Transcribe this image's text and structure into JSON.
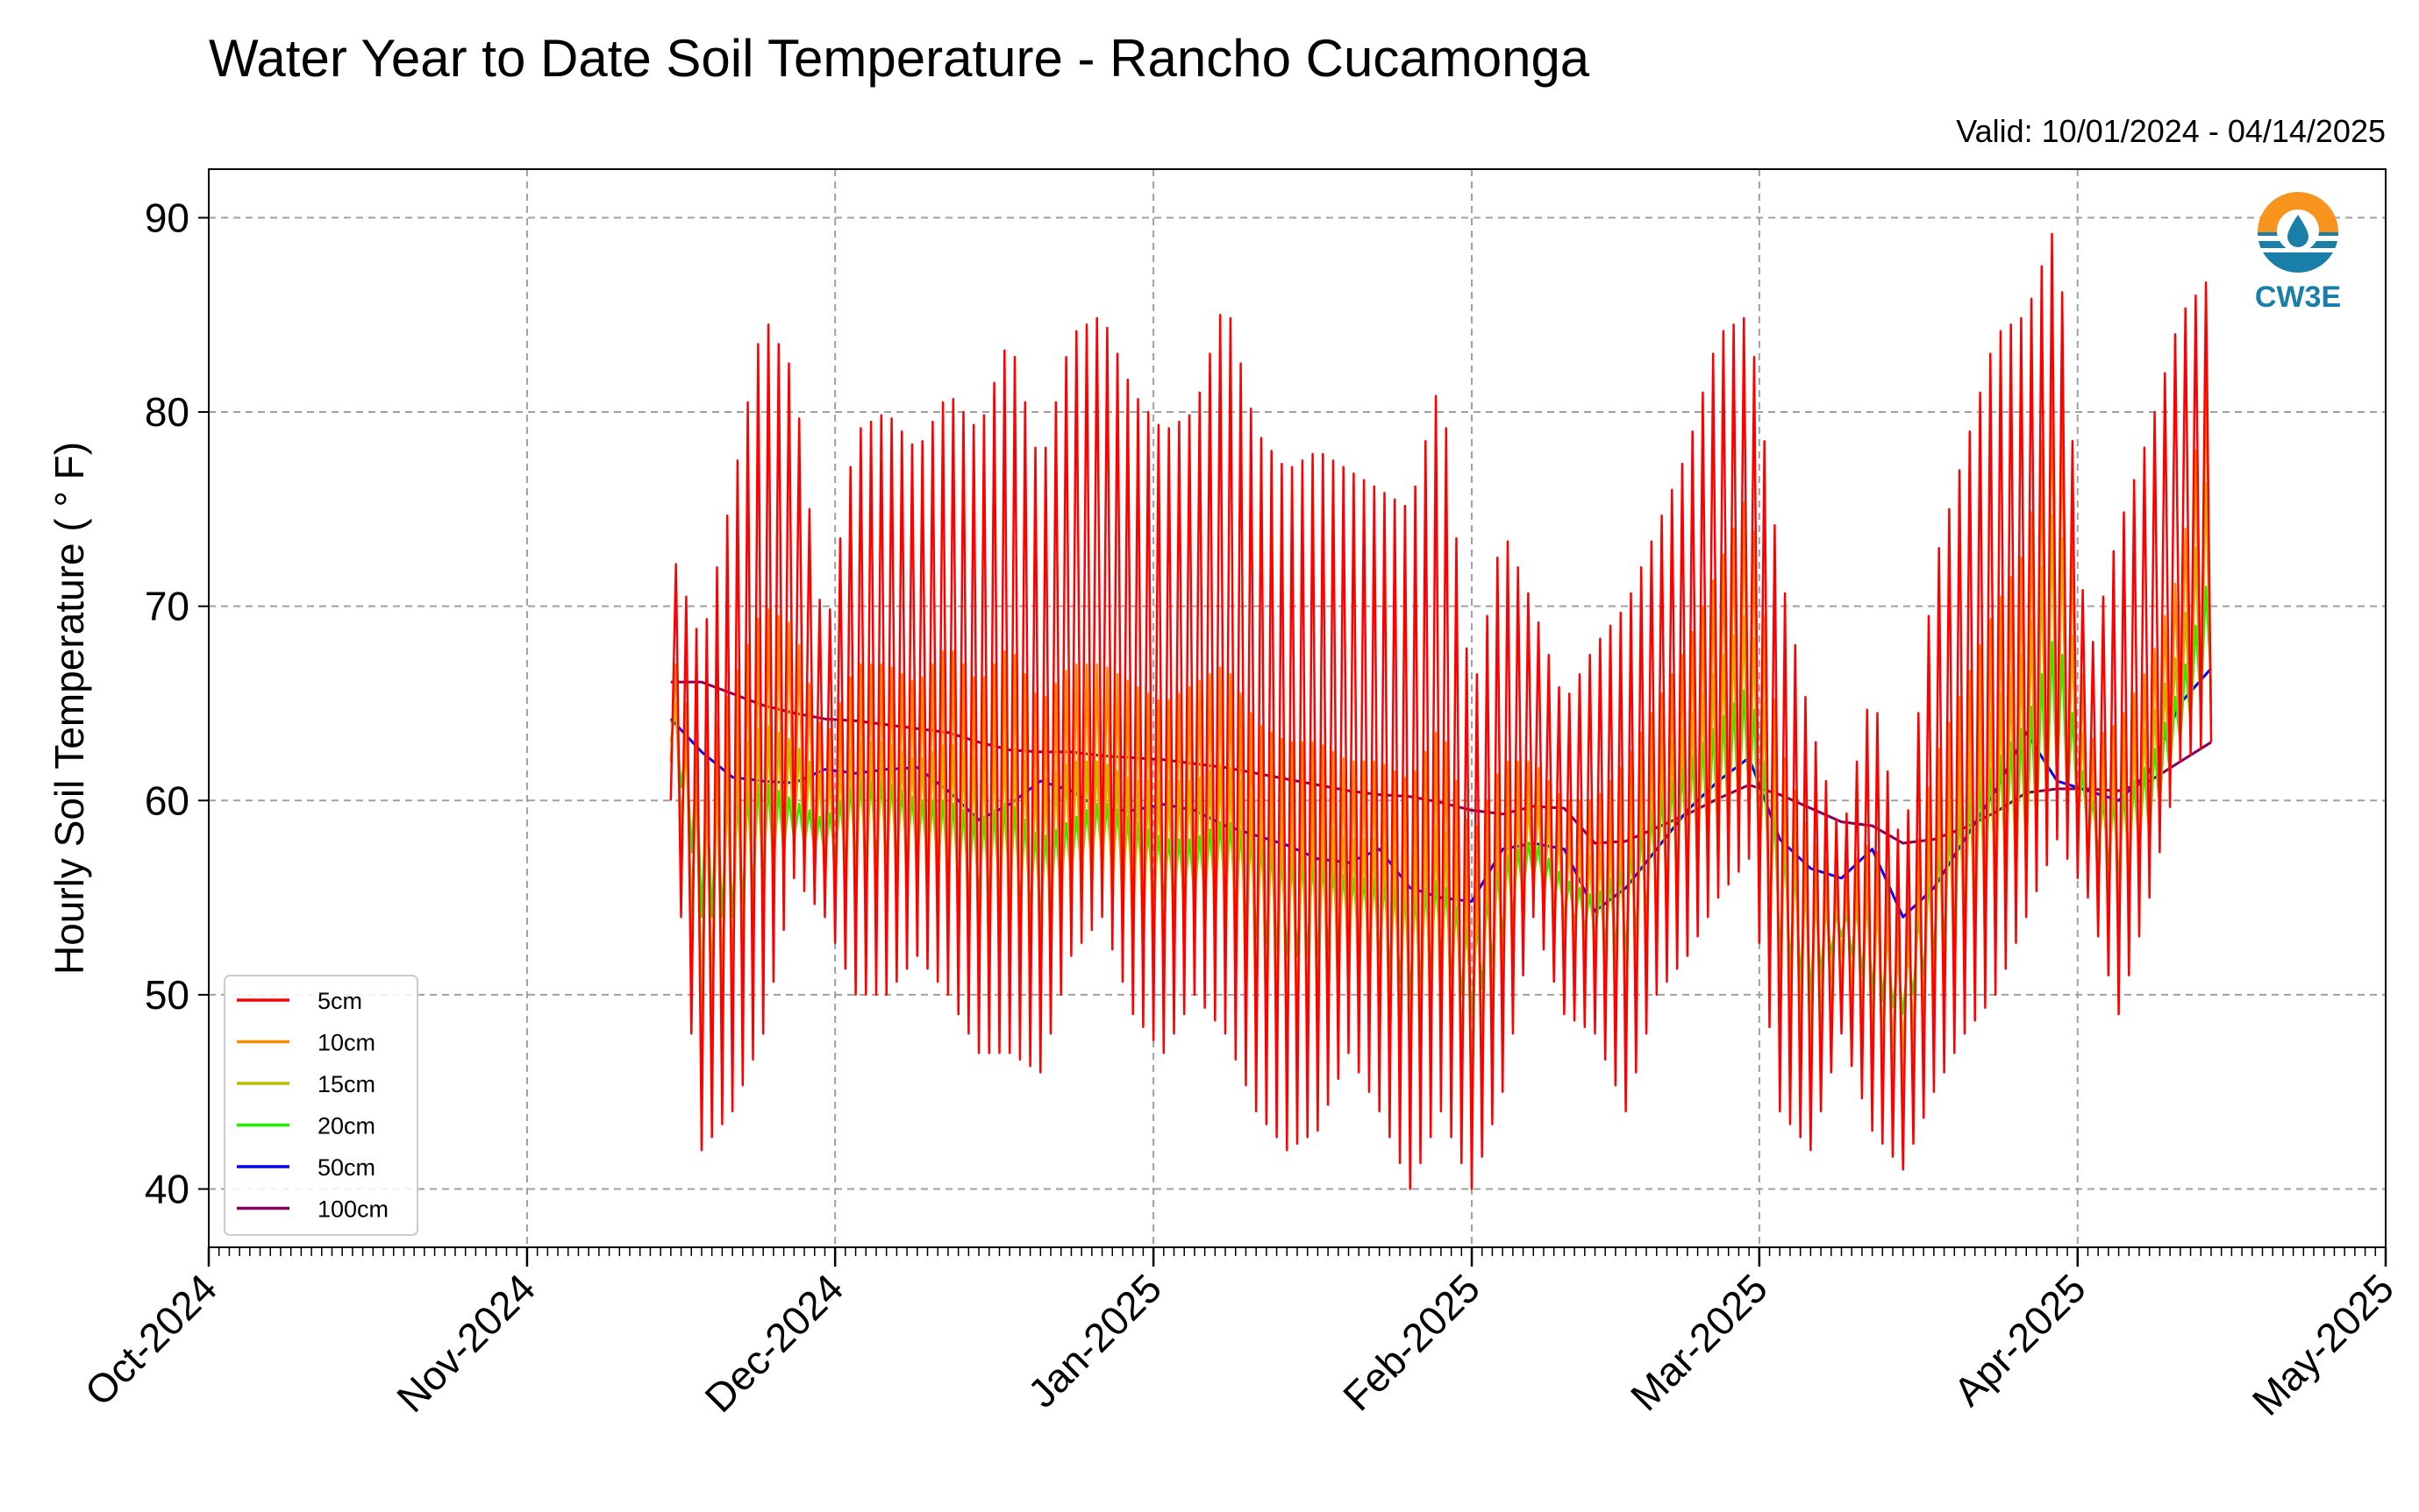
{
  "chart_data": {
    "type": "line",
    "title": "Water Year to Date Soil Temperature - Rancho Cucamonga",
    "valid_text": "Valid: 10/01/2024 - 04/14/2025",
    "ylabel": "Hourly Soil Temperature ( $^\\circ$F)",
    "ylabel_display": "Hourly Soil Temperature ( ° F)",
    "ylim": [
      37,
      92.5
    ],
    "y_ticks": [
      40,
      50,
      60,
      70,
      80,
      90
    ],
    "x_range": [
      "2024-10-01",
      "2025-05-01"
    ],
    "x_ticks": [
      {
        "date": "2024-10-01",
        "label": "Oct-2024"
      },
      {
        "date": "2024-11-01",
        "label": "Nov-2024"
      },
      {
        "date": "2024-12-01",
        "label": "Dec-2024"
      },
      {
        "date": "2025-01-01",
        "label": "Jan-2025"
      },
      {
        "date": "2025-02-01",
        "label": "Feb-2025"
      },
      {
        "date": "2025-03-01",
        "label": "Mar-2025"
      },
      {
        "date": "2025-04-01",
        "label": "Apr-2025"
      },
      {
        "date": "2025-05-01",
        "label": "May-2025"
      }
    ],
    "grid": true,
    "legend_position": "bottom-left",
    "logo_text": "CW3E",
    "series": [
      {
        "name": "5cm",
        "color": "#ff0000",
        "x": [
          "2024-11-15",
          "2024-11-18",
          "2024-11-21",
          "2024-11-24",
          "2024-11-27",
          "2024-11-30",
          "2024-12-03",
          "2024-12-06",
          "2024-12-09",
          "2024-12-12",
          "2024-12-15",
          "2024-12-18",
          "2024-12-21",
          "2024-12-24",
          "2024-12-27",
          "2024-12-30",
          "2025-01-02",
          "2025-01-05",
          "2025-01-08",
          "2025-01-11",
          "2025-01-14",
          "2025-01-17",
          "2025-01-20",
          "2025-01-23",
          "2025-01-26",
          "2025-01-29",
          "2025-02-01",
          "2025-02-04",
          "2025-02-07",
          "2025-02-10",
          "2025-02-13",
          "2025-02-16",
          "2025-02-19",
          "2025-02-22",
          "2025-02-25",
          "2025-02-28",
          "2025-03-03",
          "2025-03-06",
          "2025-03-09",
          "2025-03-12",
          "2025-03-15",
          "2025-03-18",
          "2025-03-21",
          "2025-03-24",
          "2025-03-27",
          "2025-03-30",
          "2025-04-02",
          "2025-04-05",
          "2025-04-08",
          "2025-04-11",
          "2025-04-14"
        ],
        "high": [
          73,
          68,
          76,
          85,
          82,
          68,
          79,
          80,
          78,
          81,
          79,
          84,
          77,
          84,
          85,
          81,
          79,
          80,
          86,
          79,
          77,
          78,
          77,
          76,
          75,
          82,
          65,
          74,
          70,
          65,
          68,
          70,
          74,
          78,
          84,
          85,
          72,
          64,
          58,
          66,
          57,
          72,
          78,
          84,
          85,
          90,
          67,
          74,
          79,
          85,
          87
        ],
        "low": [
          60,
          42,
          44,
          48,
          56,
          54,
          50,
          50,
          52,
          50,
          47,
          47,
          46,
          52,
          54,
          49,
          47,
          50,
          48,
          44,
          42,
          43,
          47,
          44,
          40,
          44,
          40,
          45,
          54,
          49,
          48,
          44,
          50,
          52,
          55,
          57,
          44,
          42,
          48,
          43,
          41,
          45,
          48,
          50,
          54,
          58,
          55,
          49,
          55,
          62,
          63
        ]
      },
      {
        "name": "10cm",
        "color": "#ff8c00",
        "x": [
          "2024-11-15",
          "2024-11-18",
          "2024-11-21",
          "2024-11-24",
          "2024-11-27",
          "2024-11-30",
          "2024-12-03",
          "2024-12-06",
          "2024-12-09",
          "2024-12-12",
          "2024-12-15",
          "2024-12-18",
          "2024-12-21",
          "2024-12-24",
          "2024-12-27",
          "2024-12-30",
          "2025-01-02",
          "2025-01-05",
          "2025-01-08",
          "2025-01-11",
          "2025-01-14",
          "2025-01-17",
          "2025-01-20",
          "2025-01-23",
          "2025-01-26",
          "2025-01-29",
          "2025-02-01",
          "2025-02-04",
          "2025-02-07",
          "2025-02-10",
          "2025-02-13",
          "2025-02-16",
          "2025-02-19",
          "2025-02-22",
          "2025-02-25",
          "2025-02-28",
          "2025-03-03",
          "2025-03-06",
          "2025-03-09",
          "2025-03-12",
          "2025-03-15",
          "2025-03-18",
          "2025-03-21",
          "2025-03-24",
          "2025-03-27",
          "2025-03-30",
          "2025-04-02",
          "2025-04-05",
          "2025-04-08",
          "2025-04-11",
          "2025-04-14"
        ],
        "high": [
          68,
          62,
          66,
          70,
          69,
          63,
          67,
          67,
          66,
          68,
          66,
          68,
          65,
          67,
          67,
          66,
          65,
          66,
          67,
          64,
          63,
          63,
          62,
          62,
          61,
          64,
          58,
          62,
          62,
          60,
          60,
          62,
          65,
          68,
          72,
          76,
          63,
          58,
          56,
          58,
          54,
          62,
          66,
          70,
          73,
          84,
          63,
          64,
          67,
          72,
          84
        ],
        "low": [
          62,
          46,
          48,
          52,
          57,
          55,
          53,
          53,
          54,
          52,
          50,
          50,
          49,
          53,
          55,
          51,
          50,
          52,
          51,
          47,
          46,
          46,
          49,
          47,
          44,
          47,
          43,
          48,
          55,
          51,
          50,
          47,
          52,
          54,
          56,
          58,
          47,
          45,
          50,
          46,
          44,
          47,
          50,
          52,
          55,
          59,
          56,
          52,
          57,
          63,
          64
        ]
      },
      {
        "name": "15cm",
        "color": "#bcbc00",
        "x": [
          "2024-11-15",
          "2024-11-18",
          "2024-11-21",
          "2024-11-24",
          "2024-11-27",
          "2024-11-30",
          "2024-12-03",
          "2024-12-06",
          "2024-12-09",
          "2024-12-12",
          "2024-12-15",
          "2024-12-18",
          "2024-12-21",
          "2024-12-24",
          "2024-12-27",
          "2024-12-30",
          "2025-01-02",
          "2025-01-05",
          "2025-01-08",
          "2025-01-11",
          "2025-01-14",
          "2025-01-17",
          "2025-01-20",
          "2025-01-23",
          "2025-01-26",
          "2025-01-29",
          "2025-02-01",
          "2025-02-04",
          "2025-02-07",
          "2025-02-10",
          "2025-02-13",
          "2025-02-16",
          "2025-02-19",
          "2025-02-22",
          "2025-02-25",
          "2025-02-28",
          "2025-03-03",
          "2025-03-06",
          "2025-03-09",
          "2025-03-12",
          "2025-03-15",
          "2025-03-18",
          "2025-03-21",
          "2025-03-24",
          "2025-03-27",
          "2025-03-30",
          "2025-04-02",
          "2025-04-05",
          "2025-04-08",
          "2025-04-11",
          "2025-04-14"
        ],
        "high": [
          66,
          60,
          62,
          64,
          63,
          61,
          63,
          63,
          62,
          63,
          62,
          63,
          61,
          62,
          62,
          61,
          61,
          61,
          62,
          60,
          59,
          59,
          58,
          58,
          57,
          59,
          55,
          59,
          60,
          58,
          57,
          59,
          62,
          64,
          67,
          70,
          60,
          56,
          55,
          56,
          52,
          59,
          62,
          65,
          68,
          76,
          61,
          62,
          64,
          68,
          78
        ],
        "low": [
          63,
          50,
          51,
          54,
          58,
          56,
          55,
          55,
          56,
          54,
          53,
          53,
          52,
          55,
          56,
          53,
          52,
          54,
          53,
          50,
          49,
          49,
          51,
          50,
          47,
          49,
          46,
          51,
          56,
          53,
          52,
          50,
          54,
          56,
          57,
          59,
          50,
          48,
          52,
          48,
          47,
          50,
          52,
          54,
          56,
          60,
          57,
          54,
          58,
          63,
          65
        ]
      },
      {
        "name": "20cm",
        "color": "#22ee00",
        "x": [
          "2024-11-15",
          "2024-11-18",
          "2024-11-21",
          "2024-11-24",
          "2024-11-27",
          "2024-11-30",
          "2024-12-03",
          "2024-12-06",
          "2024-12-09",
          "2024-12-12",
          "2024-12-15",
          "2024-12-18",
          "2024-12-21",
          "2024-12-24",
          "2024-12-27",
          "2024-12-30",
          "2025-01-02",
          "2025-01-05",
          "2025-01-08",
          "2025-01-11",
          "2025-01-14",
          "2025-01-17",
          "2025-01-20",
          "2025-01-23",
          "2025-01-26",
          "2025-01-29",
          "2025-02-01",
          "2025-02-04",
          "2025-02-07",
          "2025-02-10",
          "2025-02-13",
          "2025-02-16",
          "2025-02-19",
          "2025-02-22",
          "2025-02-25",
          "2025-02-28",
          "2025-03-03",
          "2025-03-06",
          "2025-03-09",
          "2025-03-12",
          "2025-03-15",
          "2025-03-18",
          "2025-03-21",
          "2025-03-24",
          "2025-03-27",
          "2025-03-30",
          "2025-04-02",
          "2025-04-05",
          "2025-04-08",
          "2025-04-11",
          "2025-04-14"
        ],
        "high": [
          65,
          61,
          60,
          61,
          60,
          59,
          61,
          61,
          60,
          60,
          59,
          60,
          58,
          59,
          60,
          59,
          58,
          58,
          59,
          58,
          57,
          57,
          56,
          56,
          55,
          56,
          53,
          57,
          58,
          56,
          55,
          57,
          60,
          62,
          64,
          66,
          58,
          55,
          54,
          55,
          51,
          57,
          60,
          62,
          64,
          69,
          60,
          60,
          62,
          66,
          72
        ],
        "low": [
          64,
          54,
          54,
          56,
          58,
          57,
          57,
          57,
          57,
          56,
          55,
          55,
          54,
          56,
          57,
          55,
          55,
          55,
          55,
          53,
          52,
          52,
          53,
          52,
          50,
          52,
          49,
          53,
          56,
          54,
          53,
          52,
          55,
          57,
          58,
          60,
          52,
          50,
          53,
          50,
          49,
          52,
          54,
          56,
          57,
          61,
          58,
          56,
          58,
          63,
          66
        ]
      },
      {
        "name": "50cm",
        "color": "#0000ff",
        "x": [
          "2024-11-15",
          "2024-11-18",
          "2024-11-21",
          "2024-11-24",
          "2024-11-27",
          "2024-11-30",
          "2024-12-03",
          "2024-12-06",
          "2024-12-09",
          "2024-12-12",
          "2024-12-15",
          "2024-12-18",
          "2024-12-21",
          "2024-12-24",
          "2024-12-27",
          "2024-12-30",
          "2025-01-02",
          "2025-01-05",
          "2025-01-08",
          "2025-01-11",
          "2025-01-14",
          "2025-01-17",
          "2025-01-20",
          "2025-01-23",
          "2025-01-26",
          "2025-01-29",
          "2025-02-01",
          "2025-02-04",
          "2025-02-07",
          "2025-02-10",
          "2025-02-13",
          "2025-02-16",
          "2025-02-19",
          "2025-02-22",
          "2025-02-25",
          "2025-02-28",
          "2025-03-03",
          "2025-03-06",
          "2025-03-09",
          "2025-03-12",
          "2025-03-15",
          "2025-03-18",
          "2025-03-21",
          "2025-03-24",
          "2025-03-27",
          "2025-03-30",
          "2025-04-02",
          "2025-04-05",
          "2025-04-08",
          "2025-04-11",
          "2025-04-14"
        ],
        "values": [
          64.2,
          62.5,
          61.2,
          61.0,
          60.9,
          61.6,
          61.4,
          61.6,
          61.7,
          60.5,
          59.0,
          59.8,
          61.0,
          60.5,
          59.5,
          59.5,
          59.8,
          59.5,
          58.7,
          58.2,
          57.7,
          57.0,
          56.8,
          57.5,
          55.5,
          55.0,
          54.8,
          57.5,
          57.8,
          57.5,
          54.3,
          55.5,
          57.5,
          59.5,
          61.0,
          62.2,
          58.0,
          56.5,
          56.0,
          57.5,
          54.0,
          55.5,
          58.0,
          60.5,
          63.5,
          61.0,
          60.5,
          60.0,
          61.5,
          65.0,
          66.8
        ]
      },
      {
        "name": "100cm",
        "color": "#800060",
        "x": [
          "2024-11-15",
          "2024-11-18",
          "2024-11-21",
          "2024-11-24",
          "2024-11-27",
          "2024-11-30",
          "2024-12-03",
          "2024-12-06",
          "2024-12-09",
          "2024-12-12",
          "2024-12-15",
          "2024-12-18",
          "2024-12-21",
          "2024-12-24",
          "2024-12-27",
          "2024-12-30",
          "2025-01-02",
          "2025-01-05",
          "2025-01-08",
          "2025-01-11",
          "2025-01-14",
          "2025-01-17",
          "2025-01-20",
          "2025-01-23",
          "2025-01-26",
          "2025-01-29",
          "2025-02-01",
          "2025-02-04",
          "2025-02-07",
          "2025-02-10",
          "2025-02-13",
          "2025-02-16",
          "2025-02-19",
          "2025-02-22",
          "2025-02-25",
          "2025-02-28",
          "2025-03-03",
          "2025-03-06",
          "2025-03-09",
          "2025-03-12",
          "2025-03-15",
          "2025-03-18",
          "2025-03-21",
          "2025-03-24",
          "2025-03-27",
          "2025-03-30",
          "2025-04-02",
          "2025-04-05",
          "2025-04-08",
          "2025-04-11",
          "2025-04-14"
        ],
        "values": [
          66.1,
          66.1,
          65.5,
          64.9,
          64.5,
          64.2,
          64.1,
          63.9,
          63.7,
          63.5,
          63.0,
          62.6,
          62.5,
          62.5,
          62.3,
          62.2,
          62.1,
          61.9,
          61.7,
          61.4,
          61.1,
          60.8,
          60.5,
          60.3,
          60.2,
          59.9,
          59.5,
          59.3,
          59.7,
          59.6,
          57.8,
          57.9,
          58.6,
          59.3,
          60.1,
          60.8,
          60.3,
          59.6,
          58.9,
          58.7,
          57.8,
          58.0,
          58.6,
          59.4,
          60.4,
          60.6,
          60.6,
          60.5,
          61.0,
          62.0,
          63.0
        ]
      }
    ]
  }
}
